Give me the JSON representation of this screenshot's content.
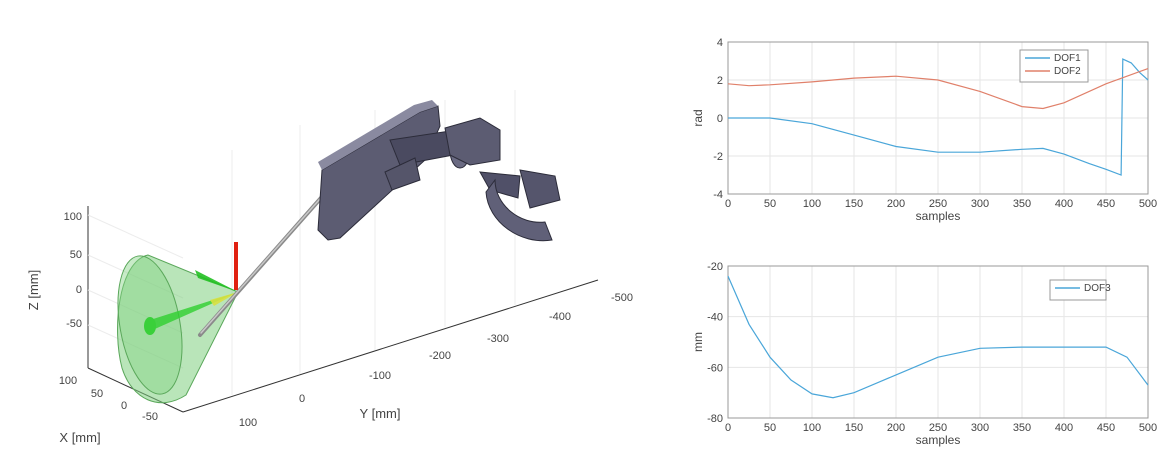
{
  "scene3d": {
    "xlabel": "X [mm]",
    "ylabel": "Y [mm]",
    "zlabel": "Z [mm]",
    "x_ticks": [
      "100",
      "50",
      "0",
      "-50"
    ],
    "y_ticks": [
      "100",
      "0",
      "-100",
      "-200",
      "-300",
      "-400",
      "-500"
    ],
    "z_ticks": [
      "100",
      "50",
      "0",
      "-50"
    ],
    "colors": {
      "cone": "#7fcf7f",
      "robot": "#5a5a70",
      "frame_z": "#e02010",
      "frame_y": "#2bbf2b",
      "tool": "#aaaaaa"
    }
  },
  "chart_data": [
    {
      "type": "line",
      "xlabel": "samples",
      "ylabel": "rad",
      "xlim": [
        0,
        500
      ],
      "ylim": [
        -4,
        4
      ],
      "x_ticks": [
        0,
        50,
        100,
        150,
        200,
        250,
        300,
        350,
        400,
        450,
        500
      ],
      "y_ticks": [
        -4,
        -2,
        0,
        2,
        4
      ],
      "grid": true,
      "legend": "top-right",
      "series": [
        {
          "name": "DOF1",
          "color": "#4aa6d9",
          "x": [
            0,
            50,
            100,
            150,
            200,
            250,
            300,
            350,
            375,
            400,
            430,
            450,
            468,
            470,
            480,
            490,
            500
          ],
          "y": [
            0.0,
            0.0,
            -0.3,
            -0.9,
            -1.5,
            -1.8,
            -1.8,
            -1.65,
            -1.6,
            -1.9,
            -2.4,
            -2.7,
            -3.0,
            3.1,
            2.9,
            2.4,
            2.0
          ]
        },
        {
          "name": "DOF2",
          "color": "#e0806a",
          "x": [
            0,
            25,
            50,
            100,
            150,
            200,
            250,
            300,
            350,
            375,
            400,
            450,
            500
          ],
          "y": [
            1.8,
            1.7,
            1.75,
            1.9,
            2.1,
            2.2,
            2.0,
            1.4,
            0.6,
            0.5,
            0.8,
            1.8,
            2.6
          ]
        }
      ]
    },
    {
      "type": "line",
      "xlabel": "samples",
      "ylabel": "mm",
      "xlim": [
        0,
        500
      ],
      "ylim": [
        -80,
        -20
      ],
      "x_ticks": [
        0,
        50,
        100,
        150,
        200,
        250,
        300,
        350,
        400,
        450,
        500
      ],
      "y_ticks": [
        -80,
        -60,
        -40,
        -20
      ],
      "grid": true,
      "legend": "top-right",
      "series": [
        {
          "name": "DOF3",
          "color": "#4aa6d9",
          "x": [
            0,
            25,
            50,
            75,
            100,
            125,
            150,
            200,
            250,
            300,
            350,
            400,
            450,
            475,
            500
          ],
          "y": [
            -24,
            -43,
            -56,
            -65,
            -70.5,
            -72,
            -70,
            -63,
            -56,
            -52.5,
            -52,
            -52,
            -52,
            -56,
            -67
          ]
        }
      ]
    }
  ]
}
